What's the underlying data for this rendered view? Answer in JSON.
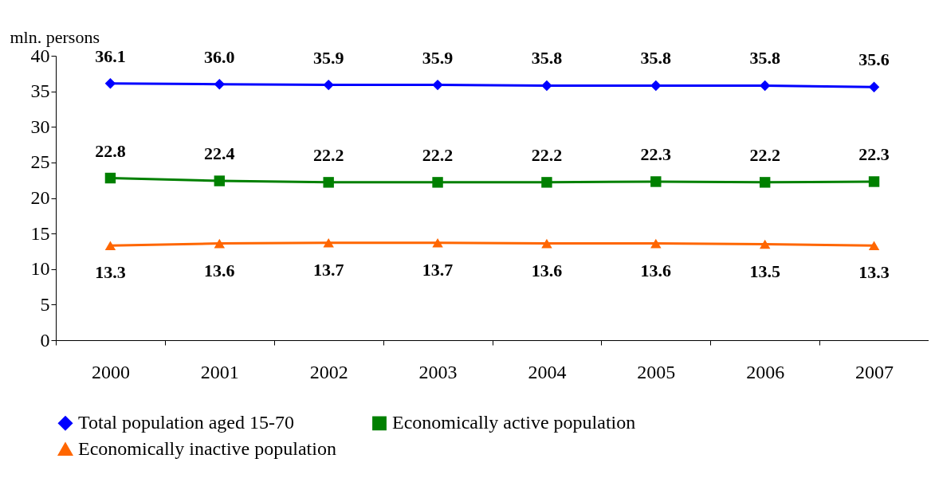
{
  "chart_data": {
    "type": "line",
    "ylabel": "mln. persons",
    "categories": [
      "2000",
      "2001",
      "2002",
      "2003",
      "2004",
      "2005",
      "2006",
      "2007"
    ],
    "ylim": [
      0,
      40
    ],
    "yticks": [
      0,
      5,
      10,
      15,
      20,
      25,
      30,
      35,
      40
    ],
    "grid": false,
    "legend": "bottom",
    "series": [
      {
        "name": "Total population aged 15-70",
        "color": "#0000ff",
        "marker": "diamond",
        "values": [
          36.1,
          36.0,
          35.9,
          35.9,
          35.8,
          35.8,
          35.8,
          35.6
        ],
        "value_labels": [
          "36.1",
          "36.0",
          "35.9",
          "35.9",
          "35.8",
          "35.8",
          "35.8",
          "35.6"
        ]
      },
      {
        "name": "Economically active population",
        "color": "#008000",
        "marker": "square",
        "values": [
          22.8,
          22.4,
          22.2,
          22.2,
          22.2,
          22.3,
          22.2,
          22.3
        ],
        "value_labels": [
          "22.8",
          "22.4",
          "22.2",
          "22.2",
          "22.2",
          "22.3",
          "22.2",
          "22.3"
        ]
      },
      {
        "name": "Economically inactive population",
        "color": "#ff6600",
        "marker": "triangle",
        "values": [
          13.3,
          13.6,
          13.7,
          13.7,
          13.6,
          13.6,
          13.5,
          13.3
        ],
        "value_labels": [
          "13.3",
          "13.6",
          "13.7",
          "13.7",
          "13.6",
          "13.6",
          "13.5",
          "13.3"
        ]
      }
    ]
  }
}
